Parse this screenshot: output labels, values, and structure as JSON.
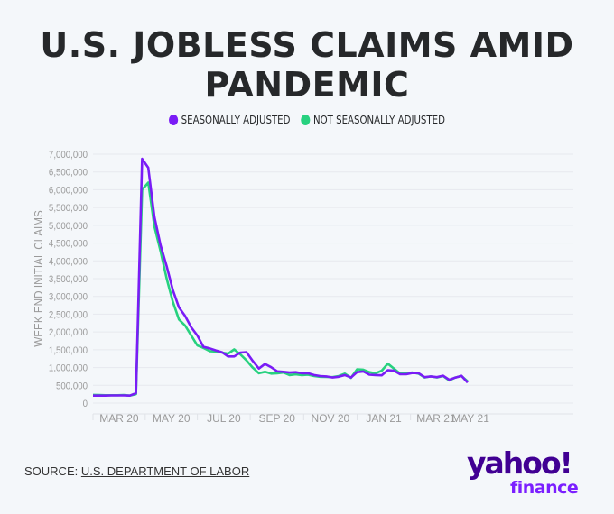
{
  "colors": {
    "seasonally_adjusted": "#7a1cf6",
    "not_seasonally_adjusted": "#27d17f",
    "grid": "#e6e9ee",
    "tick_text": "#9a9a9a"
  },
  "source": {
    "label": "SOURCE:",
    "link_text": "U.S. DEPARTMENT OF LABOR"
  },
  "logo": {
    "line1": "yahoo!",
    "line2": "finance"
  },
  "chart_data": {
    "type": "line",
    "title": "U.S. JOBLESS CLAIMS AMID PANDEMIC",
    "xlabel": "",
    "ylabel": "WEEK END INITIAL CLAIMS",
    "ylim": [
      0,
      7000000
    ],
    "yticks": [
      0,
      500000,
      1000000,
      1500000,
      2000000,
      2500000,
      3000000,
      3500000,
      4000000,
      4500000,
      5000000,
      5500000,
      6000000,
      6500000,
      7000000
    ],
    "ytick_labels": [
      "0",
      "500,000",
      "1,000,000",
      "1,500,000",
      "2,000,000",
      "2,500,000",
      "3,000,000",
      "3,500,000",
      "4,000,000",
      "4,500,000",
      "5,000,000",
      "5,500,000",
      "6,000,000",
      "6,500,000",
      "7,000,000"
    ],
    "x_unit": "week index",
    "xlim": [
      0,
      64.1
    ],
    "xtick_weeks": [
      0,
      8.5,
      17,
      25.6,
      34.3,
      43,
      51.7,
      60,
      64.1
    ],
    "xtick_labels": [
      "MAR 20",
      "MAY 20",
      "JUL 20",
      "SEP 20",
      "NOV 20",
      "JAN 21",
      "MAR 21",
      "MAY 21"
    ],
    "grid": true,
    "legend_position": "top-center",
    "series": [
      {
        "name": "SEASONALLY ADJUSTED",
        "values": [
          210000,
          210000,
          210000,
          215000,
          215000,
          215000,
          210000,
          280000,
          6870000,
          6620000,
          5240000,
          4440000,
          3850000,
          3180000,
          2690000,
          2450000,
          2130000,
          1900000,
          1580000,
          1540000,
          1480000,
          1430000,
          1310000,
          1310000,
          1420000,
          1430000,
          1190000,
          971000,
          1100000,
          1010000,
          893000,
          880000,
          860000,
          870000,
          840000,
          840000,
          790000,
          760000,
          750000,
          720000,
          740000,
          790000,
          720000,
          870000,
          890000,
          800000,
          790000,
          780000,
          925000,
          914000,
          812000,
          812000,
          848000,
          841000,
          730000,
          750000,
          730000,
          770000,
          658000,
          719000,
          769000,
          576000
        ]
      },
      {
        "name": "NOT SEASONALLY ADJUSTED",
        "values": [
          230000,
          225000,
          220000,
          220000,
          220000,
          225000,
          210000,
          250000,
          6000000,
          6200000,
          4970000,
          4270000,
          3500000,
          2850000,
          2350000,
          2180000,
          1900000,
          1620000,
          1550000,
          1460000,
          1450000,
          1420000,
          1390000,
          1510000,
          1370000,
          1200000,
          1000000,
          840000,
          880000,
          830000,
          840000,
          860000,
          790000,
          810000,
          790000,
          800000,
          760000,
          740000,
          735000,
          730000,
          760000,
          830000,
          710000,
          950000,
          940000,
          870000,
          840000,
          910000,
          1110000,
          970000,
          830000,
          840000,
          860000,
          830000,
          720000,
          750000,
          720000,
          760000,
          640000,
          720000,
          760000,
          610000
        ]
      }
    ]
  }
}
